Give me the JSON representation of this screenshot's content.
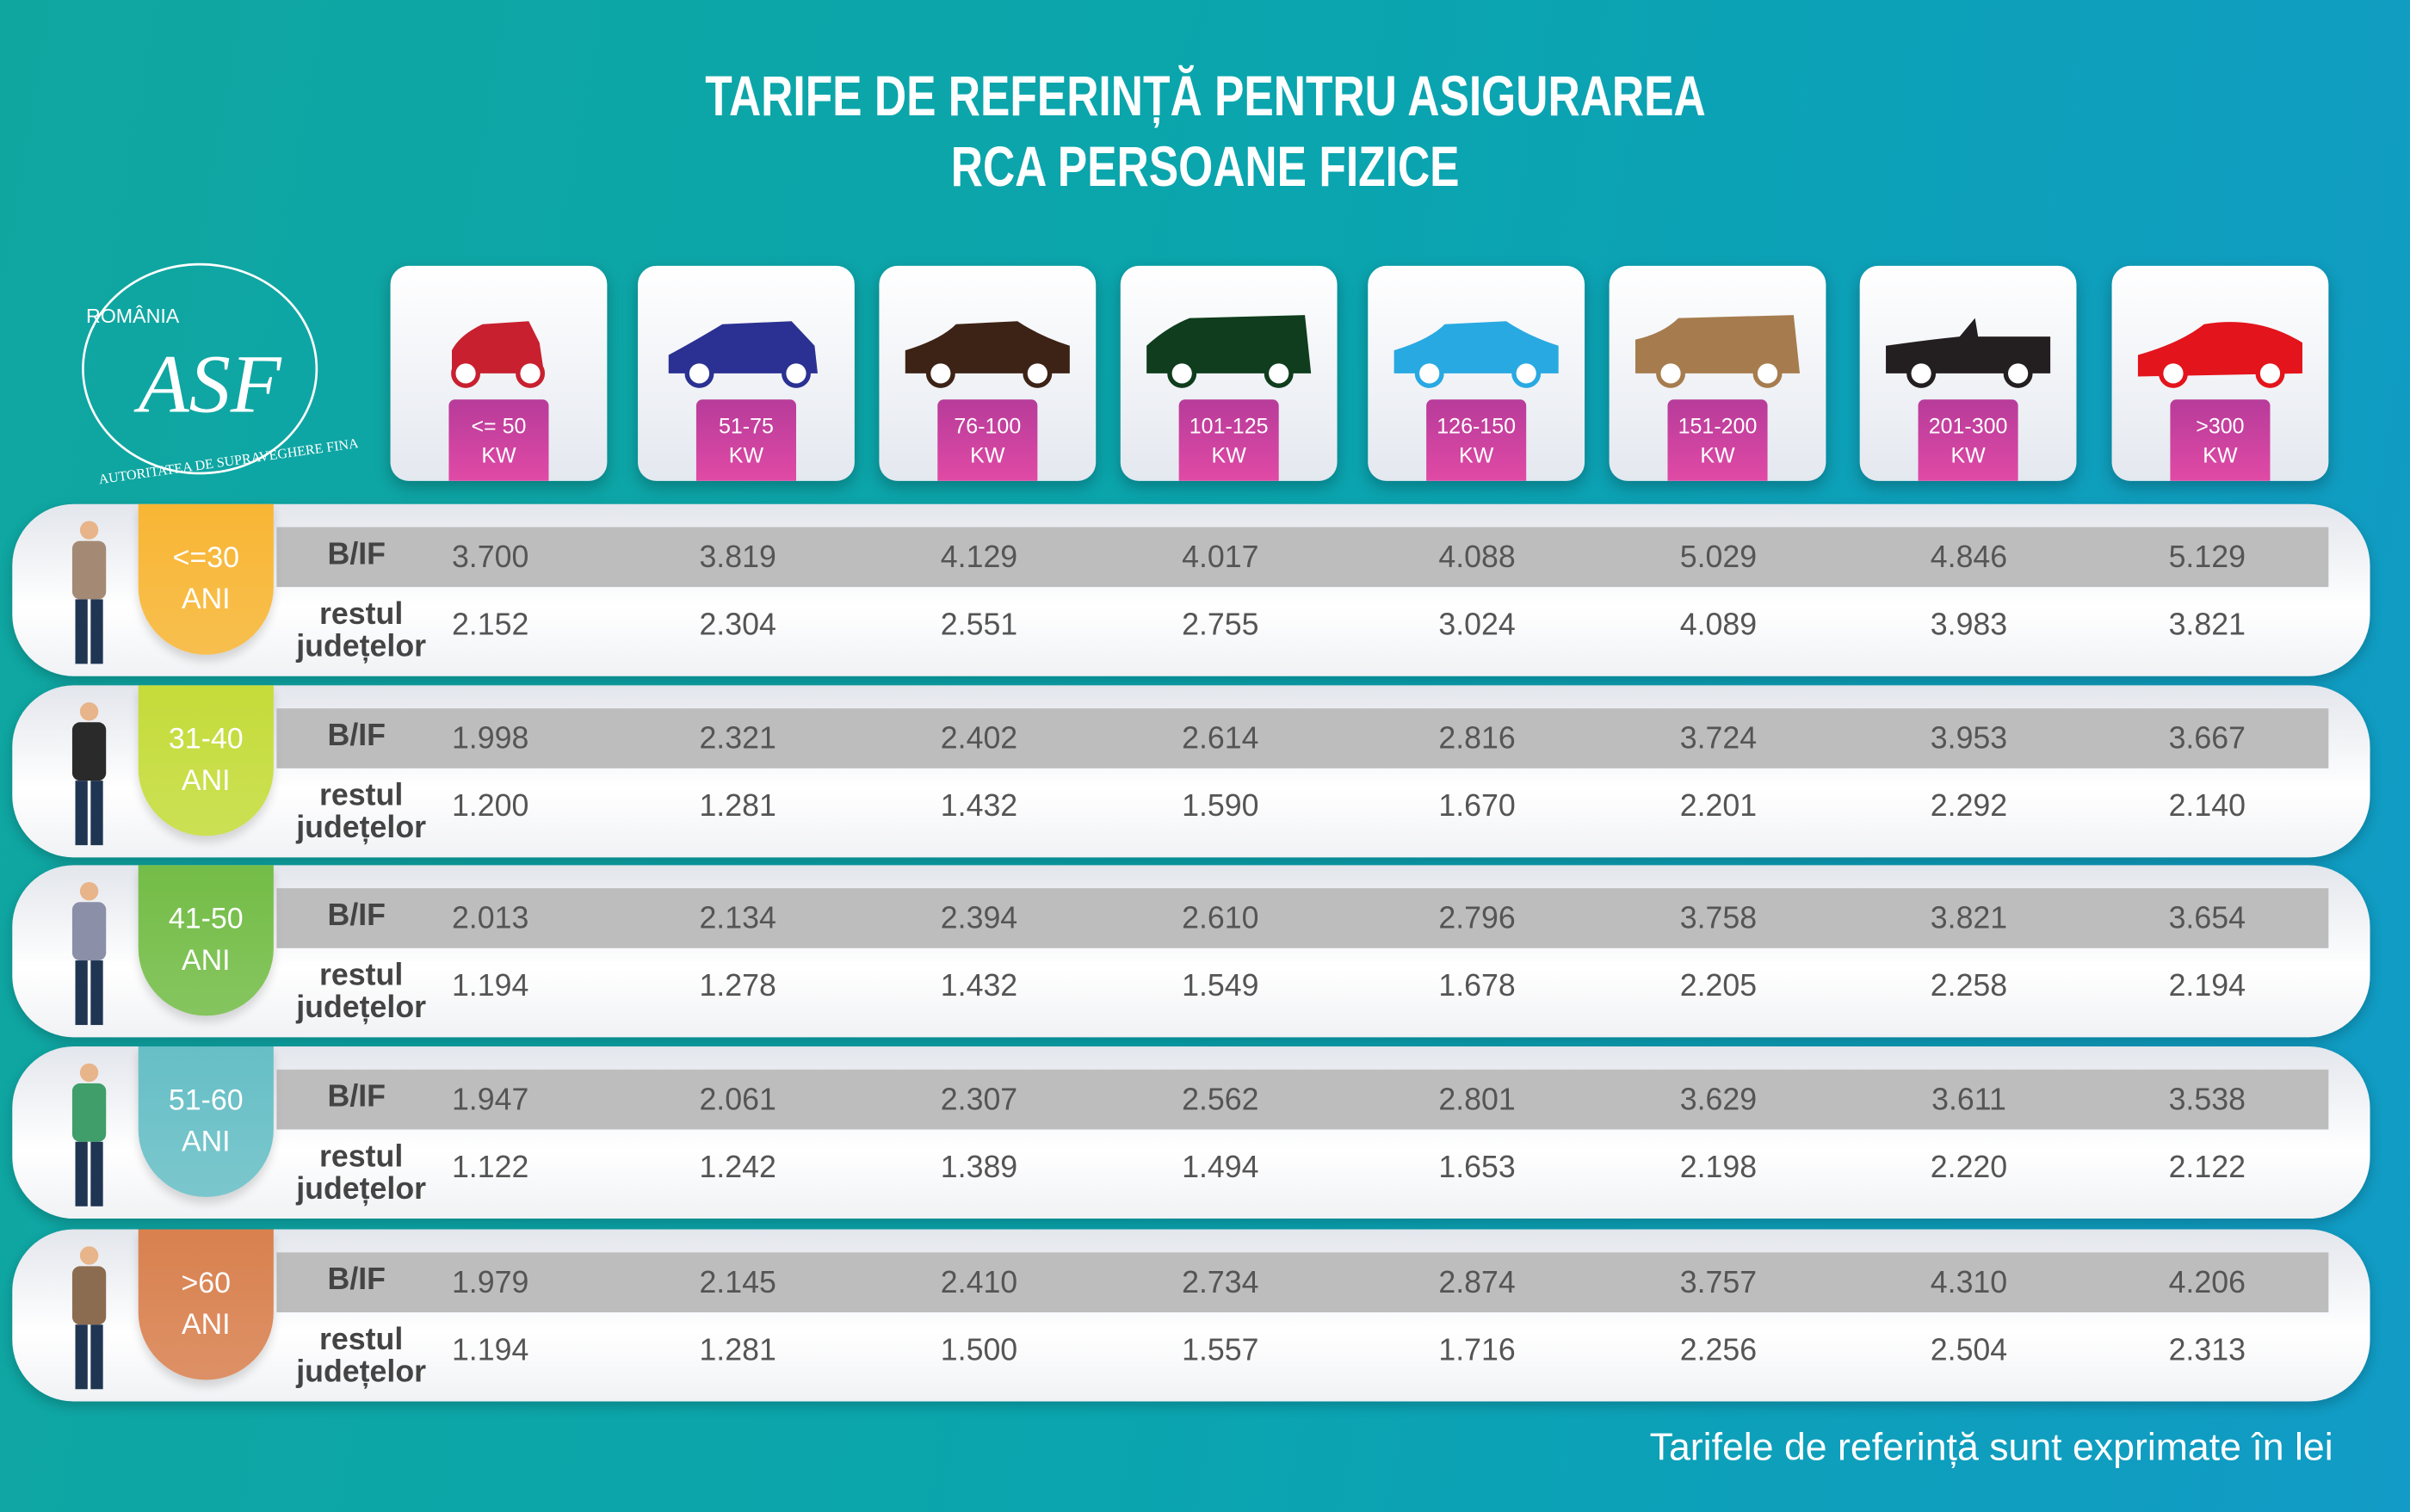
{
  "title": {
    "line1": "TARIFE DE REFERINȚĂ PENTRU ASIGURAREA",
    "line2": "RCA PERSOANE FIZICE"
  },
  "logo": {
    "country": "ROMÂNIA",
    "org": "AUTORITATEA DE SUPRAVEGHERE FINANCIARĂ",
    "monogram": "ASF"
  },
  "columns": [
    {
      "range": "<= 50",
      "unit": "KW",
      "car_color": "#c8202f",
      "car": "hatchback-small"
    },
    {
      "range": "51-75",
      "unit": "KW",
      "car_color": "#2b3192",
      "car": "hatchback"
    },
    {
      "range": "76-100",
      "unit": "KW",
      "car_color": "#3d2316",
      "car": "sedan"
    },
    {
      "range": "101-125",
      "unit": "KW",
      "car_color": "#0f3d1d",
      "car": "minivan"
    },
    {
      "range": "126-150",
      "unit": "KW",
      "car_color": "#29a9e1",
      "car": "sedan"
    },
    {
      "range": "151-200",
      "unit": "KW",
      "car_color": "#a67c4e",
      "car": "suv"
    },
    {
      "range": "201-300",
      "unit": "KW",
      "car_color": "#231f20",
      "car": "convertible"
    },
    {
      "range": ">300",
      "unit": "KW",
      "car_color": "#e3141b",
      "car": "sports"
    }
  ],
  "row_labels": {
    "bif": "B/IF",
    "rest1": "restul",
    "rest2": "județelor"
  },
  "rows": [
    {
      "age1": "<=30",
      "age2": "ANI",
      "color": "#f8b634",
      "bif": [
        "3.700",
        "3.819",
        "4.129",
        "4.017",
        "4.088",
        "5.029",
        "4.846",
        "5.129"
      ],
      "rest": [
        "2.152",
        "2.304",
        "2.551",
        "2.755",
        "3.024",
        "4.089",
        "3.983",
        "3.821"
      ]
    },
    {
      "age1": "31-40",
      "age2": "ANI",
      "color": "#c5dc3a",
      "bif": [
        "1.998",
        "2.321",
        "2.402",
        "2.614",
        "2.816",
        "3.724",
        "3.953",
        "3.667"
      ],
      "rest": [
        "1.200",
        "1.281",
        "1.432",
        "1.590",
        "1.670",
        "2.201",
        "2.292",
        "2.140"
      ]
    },
    {
      "age1": "41-50",
      "age2": "ANI",
      "color": "#74bd47",
      "bif": [
        "2.013",
        "2.134",
        "2.394",
        "2.610",
        "2.796",
        "3.758",
        "3.821",
        "3.654"
      ],
      "rest": [
        "1.194",
        "1.278",
        "1.432",
        "1.549",
        "1.678",
        "2.205",
        "2.258",
        "2.194"
      ]
    },
    {
      "age1": "51-60",
      "age2": "ANI",
      "color": "#67bfc6",
      "bif": [
        "1.947",
        "2.061",
        "2.307",
        "2.562",
        "2.801",
        "3.629",
        "3.611",
        "3.538"
      ],
      "rest": [
        "1.122",
        "1.242",
        "1.389",
        "1.494",
        "1.653",
        "2.198",
        "2.220",
        "2.122"
      ]
    },
    {
      "age1": ">60",
      "age2": "ANI",
      "color": "#d9814f",
      "bif": [
        "1.979",
        "2.145",
        "2.410",
        "2.734",
        "2.874",
        "3.757",
        "4.310",
        "4.206"
      ],
      "rest": [
        "1.194",
        "1.281",
        "1.500",
        "1.557",
        "1.716",
        "2.256",
        "2.504",
        "2.313"
      ]
    }
  ],
  "footer": "Tarifele de referință sunt exprimate în lei"
}
